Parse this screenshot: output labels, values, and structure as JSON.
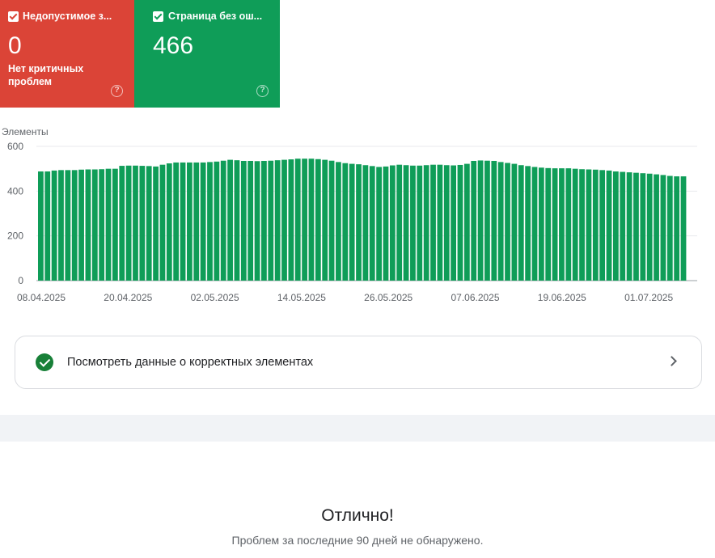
{
  "metrics": {
    "invalid": {
      "title": "Недопустимое з...",
      "value": "0",
      "subtitle": "Нет критичных проблем",
      "color": "#db4437",
      "help_icon": "help-circle-icon"
    },
    "valid": {
      "title": "Страница без ош...",
      "value": "466",
      "color": "#0f9d58",
      "help_icon": "help-circle-icon"
    }
  },
  "chart_data": {
    "type": "bar",
    "ylabel": "Элементы",
    "ylim": [
      0,
      600
    ],
    "yticks": [
      "0",
      "200",
      "400",
      "600"
    ],
    "xticks": [
      "08.04.2025",
      "20.04.2025",
      "02.05.2025",
      "14.05.2025",
      "26.05.2025",
      "07.06.2025",
      "19.06.2025",
      "01.07.2025"
    ],
    "bar_color": "#0f9d58",
    "values": [
      488,
      488,
      492,
      494,
      494,
      494,
      496,
      497,
      497,
      498,
      500,
      500,
      513,
      514,
      514,
      513,
      512,
      510,
      518,
      524,
      528,
      528,
      528,
      528,
      528,
      530,
      532,
      536,
      540,
      538,
      535,
      535,
      534,
      535,
      536,
      538,
      540,
      542,
      545,
      545,
      545,
      543,
      540,
      536,
      530,
      525,
      522,
      520,
      516,
      512,
      508,
      510,
      515,
      518,
      516,
      514,
      514,
      516,
      518,
      518,
      516,
      515,
      517,
      522,
      535,
      537,
      536,
      535,
      530,
      526,
      522,
      516,
      512,
      508,
      505,
      503,
      502,
      502,
      502,
      500,
      498,
      497,
      496,
      494,
      492,
      488,
      486,
      484,
      482,
      480,
      478,
      475,
      472,
      468,
      466,
      466
    ]
  },
  "valid_row": {
    "label": "Посмотреть данные о корректных элементах",
    "icon": "check-circle-icon",
    "chevron": "chevron-right-icon"
  },
  "result": {
    "title": "Отлично!",
    "subtitle": "Проблем за последние 90 дней не обнаружено."
  }
}
